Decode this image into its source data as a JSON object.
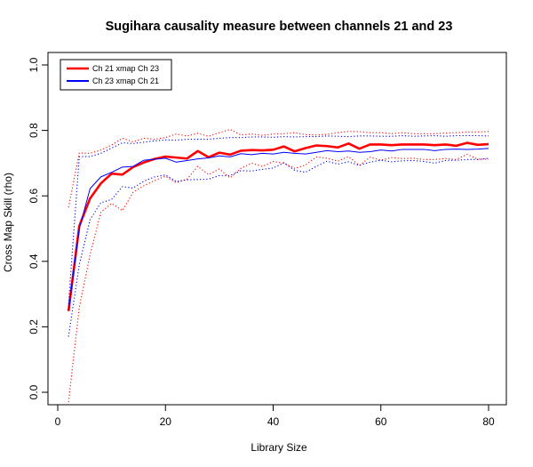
{
  "chart_data": {
    "type": "line",
    "title": "Sugihara causality measure between channels  21 and 23",
    "xlabel": "Library Size",
    "ylabel": "Cross Map Skill (rho)",
    "xlim": [
      0,
      82
    ],
    "ylim": [
      -0.03,
      1.03
    ],
    "x_ticks": [
      "0",
      "20",
      "40",
      "60",
      "80"
    ],
    "y_ticks": [
      "0.0",
      "0.2",
      "0.4",
      "0.6",
      "0.8",
      "1.0"
    ],
    "legend_position": "top-left",
    "x": [
      2,
      4,
      6,
      8,
      10,
      12,
      14,
      16,
      18,
      20,
      22,
      24,
      26,
      28,
      30,
      32,
      34,
      36,
      38,
      40,
      42,
      44,
      46,
      48,
      50,
      52,
      54,
      56,
      58,
      60,
      62,
      64,
      66,
      68,
      70,
      72,
      74,
      76,
      78,
      80
    ],
    "series": [
      {
        "name": "Ch 21 xmap Ch 23",
        "color": "#ff0000",
        "style": "solid-thick",
        "values": [
          0.248,
          0.508,
          0.592,
          0.638,
          0.668,
          0.665,
          0.688,
          0.702,
          0.713,
          0.72,
          0.717,
          0.714,
          0.737,
          0.718,
          0.732,
          0.726,
          0.738,
          0.74,
          0.739,
          0.741,
          0.751,
          0.736,
          0.746,
          0.754,
          0.752,
          0.748,
          0.76,
          0.744,
          0.757,
          0.757,
          0.755,
          0.757,
          0.757,
          0.757,
          0.755,
          0.757,
          0.753,
          0.762,
          0.756,
          0.758
        ]
      },
      {
        "name": "Ch 23  xmap Ch 21",
        "color": "#0000ff",
        "style": "solid-thin",
        "values": [
          0.25,
          0.5,
          0.622,
          0.658,
          0.672,
          0.688,
          0.69,
          0.709,
          0.712,
          0.715,
          0.703,
          0.708,
          0.713,
          0.716,
          0.722,
          0.719,
          0.729,
          0.726,
          0.73,
          0.728,
          0.733,
          0.73,
          0.728,
          0.733,
          0.738,
          0.735,
          0.737,
          0.733,
          0.735,
          0.74,
          0.737,
          0.742,
          0.742,
          0.742,
          0.738,
          0.742,
          0.743,
          0.742,
          0.743,
          0.745
        ]
      },
      {
        "name": "",
        "color": "#ff0000",
        "style": "dotted",
        "values": [
          0.565,
          0.731,
          0.73,
          0.74,
          0.755,
          0.776,
          0.765,
          0.776,
          0.773,
          0.778,
          0.789,
          0.783,
          0.791,
          0.782,
          0.793,
          0.803,
          0.786,
          0.789,
          0.785,
          0.789,
          0.79,
          0.793,
          0.787,
          0.786,
          0.788,
          0.793,
          0.797,
          0.796,
          0.793,
          0.793,
          0.79,
          0.793,
          0.79,
          0.79,
          0.79,
          0.792,
          0.793,
          0.795,
          0.795,
          0.797
        ]
      },
      {
        "name": "",
        "color": "#ff0000",
        "style": "dotted",
        "values": [
          -0.03,
          0.26,
          0.42,
          0.55,
          0.577,
          0.555,
          0.611,
          0.631,
          0.647,
          0.66,
          0.64,
          0.651,
          0.69,
          0.665,
          0.682,
          0.655,
          0.684,
          0.7,
          0.69,
          0.705,
          0.7,
          0.684,
          0.694,
          0.719,
          0.715,
          0.706,
          0.72,
          0.693,
          0.718,
          0.709,
          0.717,
          0.714,
          0.715,
          0.711,
          0.711,
          0.714,
          0.711,
          0.727,
          0.712,
          0.712
        ]
      },
      {
        "name": "",
        "color": "#0000ff",
        "style": "dotted",
        "values": [
          0.27,
          0.72,
          0.72,
          0.73,
          0.746,
          0.762,
          0.76,
          0.764,
          0.768,
          0.771,
          0.77,
          0.773,
          0.773,
          0.773,
          0.776,
          0.778,
          0.778,
          0.78,
          0.78,
          0.779,
          0.781,
          0.78,
          0.781,
          0.781,
          0.783,
          0.782,
          0.781,
          0.783,
          0.783,
          0.782,
          0.782,
          0.784,
          0.782,
          0.783,
          0.784,
          0.782,
          0.784,
          0.784,
          0.784,
          0.783
        ]
      },
      {
        "name": "",
        "color": "#0000ff",
        "style": "dotted",
        "values": [
          0.17,
          0.39,
          0.527,
          0.579,
          0.589,
          0.628,
          0.624,
          0.645,
          0.658,
          0.664,
          0.644,
          0.649,
          0.65,
          0.651,
          0.662,
          0.662,
          0.677,
          0.676,
          0.681,
          0.685,
          0.701,
          0.678,
          0.672,
          0.69,
          0.706,
          0.697,
          0.704,
          0.693,
          0.703,
          0.709,
          0.704,
          0.707,
          0.708,
          0.705,
          0.7,
          0.708,
          0.709,
          0.711,
          0.711,
          0.715
        ]
      }
    ]
  }
}
